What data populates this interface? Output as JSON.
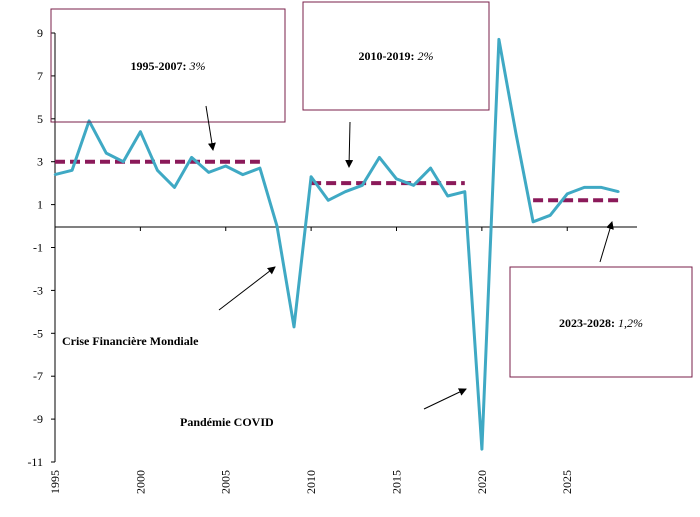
{
  "chart_data": {
    "type": "line",
    "title": "",
    "xlabel": "",
    "ylabel": "",
    "xlim": [
      1995,
      2029
    ],
    "ylim": [
      -11,
      9
    ],
    "y_ticks": [
      9,
      7,
      5,
      3,
      1,
      -1,
      -3,
      -5,
      -7,
      -9,
      -11
    ],
    "x_ticks": [
      1995,
      2000,
      2005,
      2010,
      2015,
      2020,
      2025
    ],
    "grid": false,
    "series": [
      {
        "color": "#3fa9c4",
        "x": [
          1995,
          1996,
          1997,
          1998,
          1999,
          2000,
          2001,
          2002,
          2003,
          2004,
          2005,
          2006,
          2007,
          2008,
          2009,
          2010,
          2011,
          2012,
          2013,
          2014,
          2015,
          2016,
          2017,
          2018,
          2019,
          2020,
          2021,
          2022,
          2023,
          2024,
          2025,
          2026,
          2027,
          2028
        ],
        "values": [
          2.4,
          2.6,
          4.9,
          3.4,
          3.0,
          4.4,
          2.6,
          1.8,
          3.2,
          2.5,
          2.8,
          2.4,
          2.7,
          0.0,
          -4.7,
          2.3,
          1.2,
          1.6,
          1.9,
          3.2,
          2.2,
          1.9,
          2.7,
          1.4,
          1.6,
          -10.4,
          8.7,
          4.3,
          0.2,
          0.5,
          1.5,
          1.8,
          1.8,
          1.6
        ]
      }
    ],
    "averages": [
      {
        "label": "1995-2007:",
        "rate": "3%",
        "value": 3.0,
        "x_start": 1995,
        "x_end": 2007,
        "color": "#8b1a5a"
      },
      {
        "label": "2010-2019:",
        "rate": "2%",
        "value": 2.0,
        "x_start": 2010,
        "x_end": 2019,
        "color": "#8b1a5a"
      },
      {
        "label": "2023-2028:",
        "rate": "1,2%",
        "value": 1.2,
        "x_start": 2023,
        "x_end": 2028,
        "color": "#8b1a5a"
      }
    ],
    "annotations": [
      {
        "text": "Crise Financière Mondiale"
      },
      {
        "text": "Pandémie COVID"
      }
    ]
  }
}
